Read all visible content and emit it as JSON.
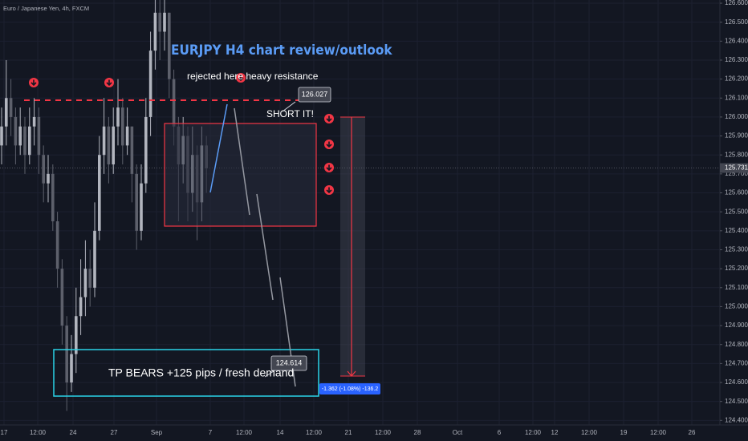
{
  "chart_data": {
    "type": "candlestick",
    "title": "Euro / Japanese Yen, 4h, FXCM",
    "annotations": {
      "headline": "EURJPY H4 chart review/outlook",
      "resistance_note": "rejected here heavy resistance",
      "short_note": "SHORT IT!",
      "target_note": "TP BEARS +125 pips / fresh demand",
      "resistance_price": 126.027,
      "target_price": 124.614,
      "measure": "-1.362 (-1.08%) -136.2"
    },
    "last_price": 125.731,
    "xticks": [
      "17",
      "12:00",
      "24",
      "27",
      "Sep",
      "7",
      "12:00",
      "14",
      "12:00",
      "21",
      "12:00",
      "28",
      "Oct",
      "6",
      "12:00",
      "12",
      "12:00",
      "19",
      "12:00",
      "26"
    ],
    "open": [
      125.85,
      125.95,
      126.1,
      126.0,
      125.85,
      125.95,
      125.8,
      125.95,
      126.0,
      125.8,
      125.65,
      125.7,
      125.45,
      125.2,
      124.9,
      124.6,
      124.75,
      124.95,
      125.05,
      125.2,
      125.1,
      125.4,
      125.8,
      125.95,
      125.75,
      125.95,
      126.05,
      125.85,
      125.95,
      125.7,
      125.4,
      125.65,
      126.0,
      126.35,
      126.55,
      126.45,
      126.55,
      126.2,
      125.95,
      125.75,
      125.9,
      125.6,
      125.8,
      125.55,
      125.85
    ],
    "high": [
      126.05,
      126.3,
      126.2,
      126.05,
      126.05,
      126.0,
      126.05,
      126.1,
      126.05,
      125.85,
      125.8,
      125.75,
      125.5,
      125.25,
      124.95,
      124.85,
      125.1,
      125.25,
      125.35,
      125.3,
      125.55,
      125.9,
      126.1,
      126.0,
      126.05,
      126.2,
      126.1,
      126.05,
      125.95,
      125.75,
      125.75,
      126.1,
      126.45,
      126.65,
      126.62,
      126.62,
      126.55,
      126.25,
      126.0,
      126.0,
      125.95,
      125.95,
      125.85,
      125.95,
      125.9
    ],
    "low": [
      125.75,
      125.85,
      125.9,
      125.75,
      125.8,
      125.7,
      125.75,
      125.85,
      125.7,
      125.55,
      125.55,
      125.4,
      125.1,
      124.8,
      124.45,
      124.55,
      124.65,
      124.85,
      124.95,
      125.0,
      125.05,
      125.35,
      125.7,
      125.65,
      125.7,
      125.85,
      125.75,
      125.8,
      125.55,
      125.3,
      125.35,
      125.6,
      125.9,
      126.25,
      126.3,
      126.35,
      126.1,
      125.85,
      125.45,
      125.65,
      125.45,
      125.5,
      125.35,
      125.45,
      125.6
    ],
    "close": [
      125.95,
      126.1,
      126.0,
      125.85,
      125.95,
      125.8,
      125.95,
      126.0,
      125.8,
      125.65,
      125.7,
      125.45,
      125.2,
      124.9,
      124.6,
      124.75,
      124.95,
      125.05,
      125.2,
      125.1,
      125.4,
      125.8,
      125.95,
      125.75,
      125.95,
      126.05,
      125.85,
      125.95,
      125.7,
      125.4,
      125.65,
      126.0,
      126.35,
      126.55,
      126.45,
      126.55,
      126.2,
      125.95,
      125.75,
      125.9,
      125.6,
      125.8,
      125.55,
      125.85,
      125.73
    ],
    "up_color": "#b2b5be",
    "down_color": "#5d606b",
    "ylim": [
      124.376,
      126.617
    ],
    "yticks": [
      {
        "value": 124.4,
        "label": "124.400"
      },
      {
        "value": 124.5,
        "label": "124.500"
      },
      {
        "value": 124.6,
        "label": "124.600"
      },
      {
        "value": 124.7,
        "label": "124.700"
      },
      {
        "value": 124.8,
        "label": "124.800"
      },
      {
        "value": 124.9,
        "label": "124.900"
      },
      {
        "value": 125.0,
        "label": "125.000"
      },
      {
        "value": 125.1,
        "label": "125.100"
      },
      {
        "value": 125.2,
        "label": "125.200"
      },
      {
        "value": 125.3,
        "label": "125.300"
      },
      {
        "value": 125.4,
        "label": "125.400"
      },
      {
        "value": 125.5,
        "label": "125.500"
      },
      {
        "value": 125.6,
        "label": "125.600"
      },
      {
        "value": 125.7,
        "label": "125.700"
      },
      {
        "value": 125.8,
        "label": "125.800"
      },
      {
        "value": 125.9,
        "label": "125.900"
      },
      {
        "value": 126.0,
        "label": "126.000"
      },
      {
        "value": 126.1,
        "label": "126.100"
      },
      {
        "value": 126.2,
        "label": "126.200"
      },
      {
        "value": 126.3,
        "label": "126.300"
      },
      {
        "value": 126.4,
        "label": "126.400"
      },
      {
        "value": 126.5,
        "label": "126.500"
      },
      {
        "value": 126.6,
        "label": "126.600"
      }
    ],
    "grid": true
  }
}
